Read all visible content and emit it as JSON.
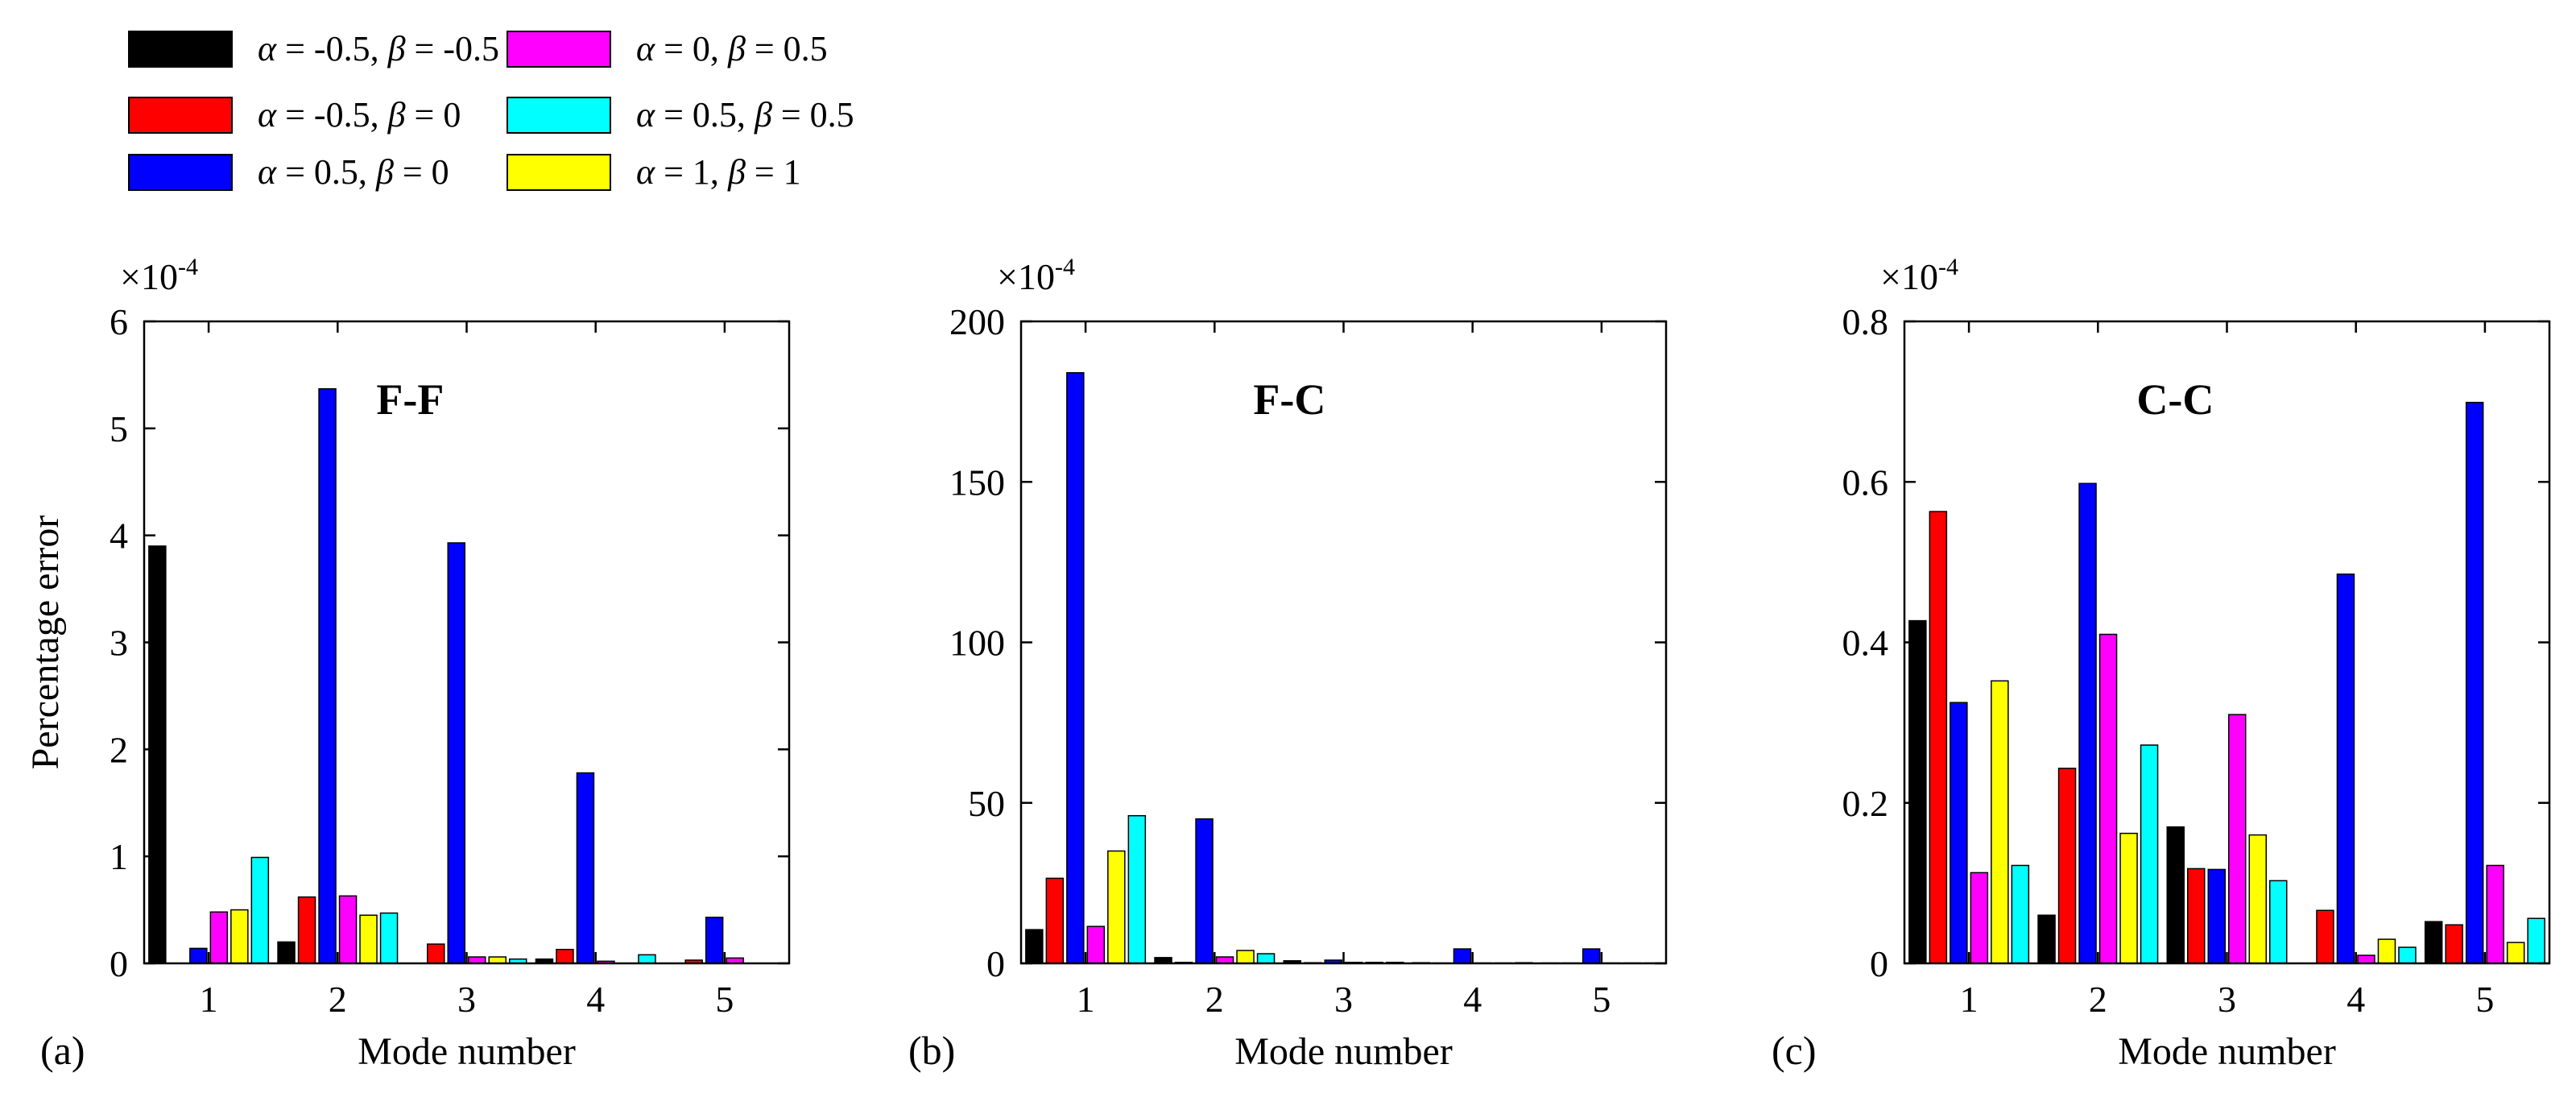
{
  "legend": [
    {
      "label": "α = -0.5, β = -0.5",
      "color": "#000000"
    },
    {
      "label": "α = -0.5, β = 0",
      "color": "#ff0000"
    },
    {
      "label": "α = 0.5, β = 0",
      "color": "#0000ff"
    },
    {
      "label": "α = 0, β = 0.5",
      "color": "#ff00ff"
    },
    {
      "label": "α = 0.5, β = 0.5",
      "color": "#00ffff"
    },
    {
      "label": "α = 1, β = 1",
      "color": "#ffff00"
    }
  ],
  "chart_data": [
    {
      "type": "bar",
      "panel_label": "(a)",
      "annotation": "F-F",
      "scale_label": "×10",
      "scale_exp": "-4",
      "xlabel": "Mode number",
      "ylabel": "Percentage error",
      "categories": [
        "1",
        "2",
        "3",
        "4",
        "5"
      ],
      "ylim": [
        0,
        6
      ],
      "yticks": [
        "0",
        "1",
        "2",
        "3",
        "4",
        "5",
        "6"
      ],
      "yticks_values": [
        0,
        1,
        2,
        3,
        4,
        5,
        6
      ],
      "series": [
        {
          "name": "α = -0.5, β = -0.5",
          "color": "#000000",
          "values": [
            3.9,
            0.2,
            0.0,
            0.04,
            0.0
          ]
        },
        {
          "name": "α = -0.5, β = 0",
          "color": "#ff0000",
          "values": [
            0.0,
            0.62,
            0.18,
            0.13,
            0.03
          ]
        },
        {
          "name": "α = 0.5, β = 0",
          "color": "#0000ff",
          "values": [
            0.14,
            5.37,
            3.93,
            1.78,
            0.43
          ]
        },
        {
          "name": "α = 0, β = 0.5",
          "color": "#ff00ff",
          "values": [
            0.48,
            0.63,
            0.06,
            0.02,
            0.05
          ]
        },
        {
          "name": "α = 1, β = 1",
          "color": "#ffff00",
          "values": [
            0.5,
            0.45,
            0.06,
            0.0,
            0.0
          ]
        },
        {
          "name": "α = 0.5, β = 0.5",
          "color": "#00ffff",
          "values": [
            0.99,
            0.47,
            0.04,
            0.08,
            0.0
          ]
        }
      ]
    },
    {
      "type": "bar",
      "panel_label": "(b)",
      "annotation": "F-C",
      "scale_label": "×10",
      "scale_exp": "-4",
      "xlabel": "Mode number",
      "ylabel": "",
      "categories": [
        "1",
        "2",
        "3",
        "4",
        "5"
      ],
      "ylim": [
        0,
        200
      ],
      "yticks": [
        "0",
        "50",
        "100",
        "150",
        "200"
      ],
      "yticks_values": [
        0,
        50,
        100,
        150,
        200
      ],
      "series": [
        {
          "name": "α = -0.5, β = -0.5",
          "color": "#000000",
          "values": [
            10.5,
            1.8,
            0.8,
            0.2,
            0.1
          ]
        },
        {
          "name": "α = -0.5, β = 0",
          "color": "#ff0000",
          "values": [
            26.5,
            0.3,
            0.2,
            0.1,
            0.1
          ]
        },
        {
          "name": "α = 0.5, β = 0",
          "color": "#0000ff",
          "values": [
            184,
            45,
            1.0,
            4.5,
            4.5
          ]
        },
        {
          "name": "α = 0, β = 0.5",
          "color": "#ff00ff",
          "values": [
            11.5,
            2.0,
            0.3,
            0.1,
            0.1
          ]
        },
        {
          "name": "α = 1, β = 1",
          "color": "#ffff00",
          "values": [
            35,
            4.0,
            0.3,
            0.1,
            0.1
          ]
        },
        {
          "name": "α = 0.5, β = 0.5",
          "color": "#00ffff",
          "values": [
            46,
            3.0,
            0.3,
            0.2,
            0.1
          ]
        }
      ]
    },
    {
      "type": "bar",
      "panel_label": "(c)",
      "annotation": "C-C",
      "scale_label": "×10",
      "scale_exp": "-4",
      "xlabel": "Mode number",
      "ylabel": "",
      "categories": [
        "1",
        "2",
        "3",
        "4",
        "5"
      ],
      "ylim": [
        0,
        0.8
      ],
      "yticks": [
        "0",
        "0.2",
        "0.4",
        "0.6",
        "0.8"
      ],
      "yticks_values": [
        0,
        0.2,
        0.4,
        0.6,
        0.8
      ],
      "series": [
        {
          "name": "α = -0.5, β = -0.5",
          "color": "#000000",
          "values": [
            0.427,
            0.06,
            0.17,
            0.0,
            0.052
          ]
        },
        {
          "name": "α = -0.5, β = 0",
          "color": "#ff0000",
          "values": [
            0.563,
            0.243,
            0.118,
            0.066,
            0.048
          ]
        },
        {
          "name": "α = 0.5, β = 0",
          "color": "#0000ff",
          "values": [
            0.325,
            0.598,
            0.117,
            0.485,
            0.699
          ]
        },
        {
          "name": "α = 0, β = 0.5",
          "color": "#ff00ff",
          "values": [
            0.113,
            0.41,
            0.31,
            0.01,
            0.122
          ]
        },
        {
          "name": "α = 1, β = 1",
          "color": "#ffff00",
          "values": [
            0.352,
            0.162,
            0.16,
            0.03,
            0.026
          ]
        },
        {
          "name": "α = 0.5, β = 0.5",
          "color": "#00ffff",
          "values": [
            0.122,
            0.272,
            0.103,
            0.02,
            0.056
          ]
        }
      ]
    }
  ]
}
